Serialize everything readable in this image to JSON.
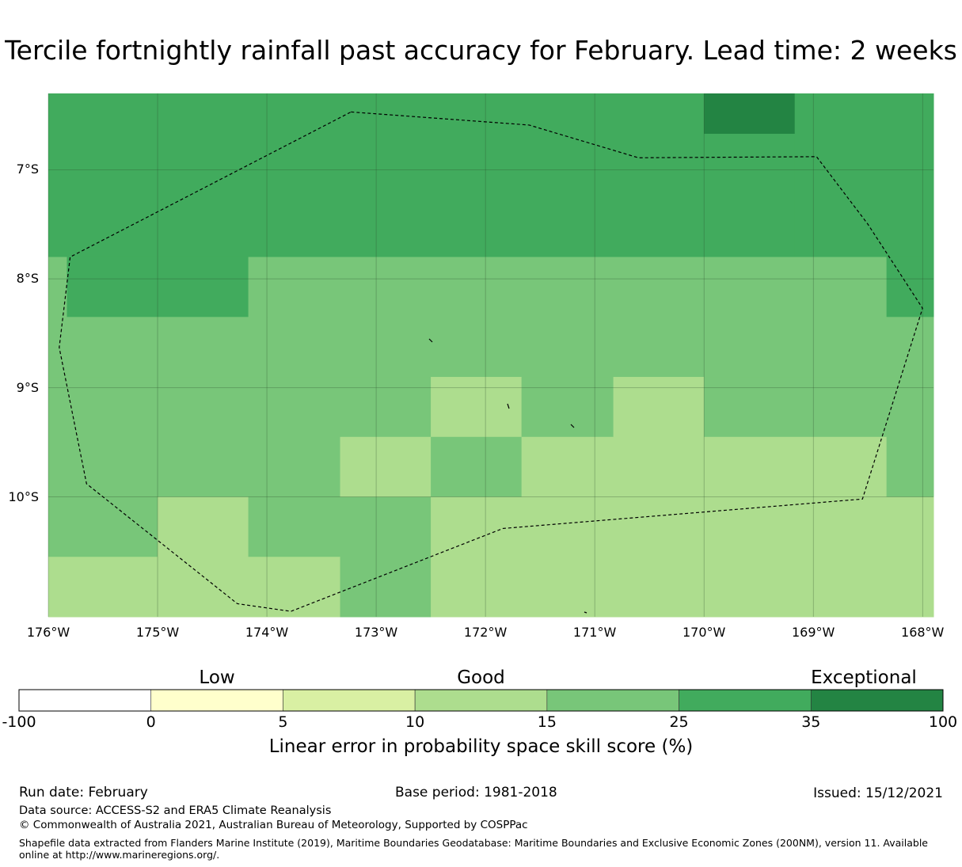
{
  "title": "Tercile fortnightly rainfall past accuracy for February. Lead time: 2 weeks",
  "map": {
    "lon_range": [
      -176,
      -167.9
    ],
    "lat_range": [
      -11.1,
      -6.3
    ],
    "lat_ticks": [
      {
        "label": "7°S",
        "value": -7
      },
      {
        "label": "8°S",
        "value": -8
      },
      {
        "label": "9°S",
        "value": -9
      },
      {
        "label": "10°S",
        "value": -10
      }
    ],
    "lon_ticks": [
      {
        "label": "176°W",
        "value": -176
      },
      {
        "label": "175°W",
        "value": -175
      },
      {
        "label": "174°W",
        "value": -174
      },
      {
        "label": "173°W",
        "value": -173
      },
      {
        "label": "172°W",
        "value": -172
      },
      {
        "label": "171°W",
        "value": -171
      },
      {
        "label": "170°W",
        "value": -170
      },
      {
        "label": "169°W",
        "value": -169
      },
      {
        "label": "168°W",
        "value": -168
      }
    ],
    "grid_cells_skill_class": [
      {
        "lon": [
          -176,
          -170
        ],
        "lat": [
          -7.8,
          -6.3
        ],
        "class": "25-35"
      },
      {
        "lon": [
          -170,
          -169.17
        ],
        "lat": [
          -6.67,
          -6.3
        ],
        "class": "35-100"
      },
      {
        "lon": [
          -170,
          -169.17
        ],
        "lat": [
          -7.8,
          -6.67
        ],
        "class": "25-35"
      },
      {
        "lon": [
          -169.17,
          -167.9
        ],
        "lat": [
          -7.8,
          -6.3
        ],
        "class": "25-35"
      },
      {
        "lon": [
          -176,
          -175.83
        ],
        "lat": [
          -8.35,
          -7.8
        ],
        "class": "15-25"
      },
      {
        "lon": [
          -175.83,
          -174.17
        ],
        "lat": [
          -8.35,
          -7.8
        ],
        "class": "25-35"
      },
      {
        "lon": [
          -174.17,
          -168.33
        ],
        "lat": [
          -8.35,
          -7.8
        ],
        "class": "15-25"
      },
      {
        "lon": [
          -168.33,
          -167.9
        ],
        "lat": [
          -8.35,
          -7.8
        ],
        "class": "25-35"
      },
      {
        "lon": [
          -176,
          -167.9
        ],
        "lat": [
          -8.9,
          -8.35
        ],
        "class": "15-25"
      },
      {
        "lon": [
          -176,
          -172.5
        ],
        "lat": [
          -9.45,
          -8.9
        ],
        "class": "15-25"
      },
      {
        "lon": [
          -172.5,
          -171.67
        ],
        "lat": [
          -9.45,
          -8.9
        ],
        "class": "10-15"
      },
      {
        "lon": [
          -171.67,
          -170.83
        ],
        "lat": [
          -9.45,
          -8.9
        ],
        "class": "15-25"
      },
      {
        "lon": [
          -170.83,
          -170
        ],
        "lat": [
          -9.45,
          -8.9
        ],
        "class": "10-15"
      },
      {
        "lon": [
          -170,
          -167.9
        ],
        "lat": [
          -9.45,
          -8.9
        ],
        "class": "15-25"
      },
      {
        "lon": [
          -176,
          -173.33
        ],
        "lat": [
          -10.0,
          -9.45
        ],
        "class": "15-25"
      },
      {
        "lon": [
          -173.33,
          -172.5
        ],
        "lat": [
          -10.0,
          -9.45
        ],
        "class": "10-15"
      },
      {
        "lon": [
          -172.5,
          -171.67
        ],
        "lat": [
          -10.0,
          -9.45
        ],
        "class": "15-25"
      },
      {
        "lon": [
          -171.67,
          -168.33
        ],
        "lat": [
          -10.0,
          -9.45
        ],
        "class": "10-15"
      },
      {
        "lon": [
          -168.33,
          -167.9
        ],
        "lat": [
          -10.0,
          -9.45
        ],
        "class": "15-25"
      },
      {
        "lon": [
          -176,
          -175
        ],
        "lat": [
          -10.55,
          -10.0
        ],
        "class": "15-25"
      },
      {
        "lon": [
          -175,
          -174.17
        ],
        "lat": [
          -10.55,
          -10.0
        ],
        "class": "10-15"
      },
      {
        "lon": [
          -174.17,
          -172.5
        ],
        "lat": [
          -10.55,
          -10.0
        ],
        "class": "15-25"
      },
      {
        "lon": [
          -172.5,
          -167.9
        ],
        "lat": [
          -10.55,
          -10.0
        ],
        "class": "10-15"
      },
      {
        "lon": [
          -176,
          -173.33
        ],
        "lat": [
          -11.1,
          -10.55
        ],
        "class": "10-15"
      },
      {
        "lon": [
          -173.33,
          -172.5
        ],
        "lat": [
          -11.1,
          -10.55
        ],
        "class": "15-25"
      },
      {
        "lon": [
          -172.5,
          -167.9
        ],
        "lat": [
          -11.1,
          -10.55
        ],
        "class": "10-15"
      }
    ],
    "eez_boundary": [
      [
        -173.23,
        -6.47
      ],
      [
        -171.6,
        -6.59
      ],
      [
        -170.6,
        -6.89
      ],
      [
        -168.97,
        -6.88
      ],
      [
        -168.5,
        -7.5
      ],
      [
        -168.0,
        -8.27
      ],
      [
        -168.55,
        -10.02
      ],
      [
        -171.84,
        -10.29
      ],
      [
        -173.78,
        -11.05
      ],
      [
        -174.27,
        -10.98
      ],
      [
        -175.65,
        -9.88
      ],
      [
        -175.9,
        -8.63
      ],
      [
        -175.8,
        -7.8
      ],
      [
        -173.23,
        -6.47
      ]
    ]
  },
  "colorbar": {
    "categories": [
      {
        "label": "Low",
        "value": 0
      },
      {
        "label": "Good",
        "value": 10
      },
      {
        "label": "Exceptional",
        "value": 100
      }
    ],
    "bins": [
      {
        "from": "-100",
        "to": "0",
        "color": "#ffffff"
      },
      {
        "from": "0",
        "to": "5",
        "color": "#ffffcc"
      },
      {
        "from": "5",
        "to": "10",
        "color": "#d9f0a3"
      },
      {
        "from": "10",
        "to": "15",
        "color": "#addd8e"
      },
      {
        "from": "15",
        "to": "25",
        "color": "#78c679"
      },
      {
        "from": "25",
        "to": "35",
        "color": "#41ab5d"
      },
      {
        "from": "35",
        "to": "100",
        "color": "#238443"
      }
    ],
    "ticks": [
      "-100",
      "0",
      "5",
      "10",
      "15",
      "25",
      "35",
      "100"
    ],
    "label": "Linear error in probability space skill score (%)"
  },
  "footer": {
    "run_date": "Run date: February",
    "base_period": "Base period: 1981-2018",
    "issued": "Issued: 15/12/2021",
    "data_source": "Data source: ACCESS-S2 and ERA5 Climate Reanalysis",
    "copyright": "© Commonwealth of Australia 2021, Australian Bureau of Meteorology, Supported by COSPPac",
    "shapefile_note": "Shapefile data extracted from Flanders Marine Institute (2019), Maritime Boundaries Geodatabase: Maritime Boundaries and Exclusive Economic Zones (200NM), version 11. Available online at http://www.marineregions.org/."
  }
}
